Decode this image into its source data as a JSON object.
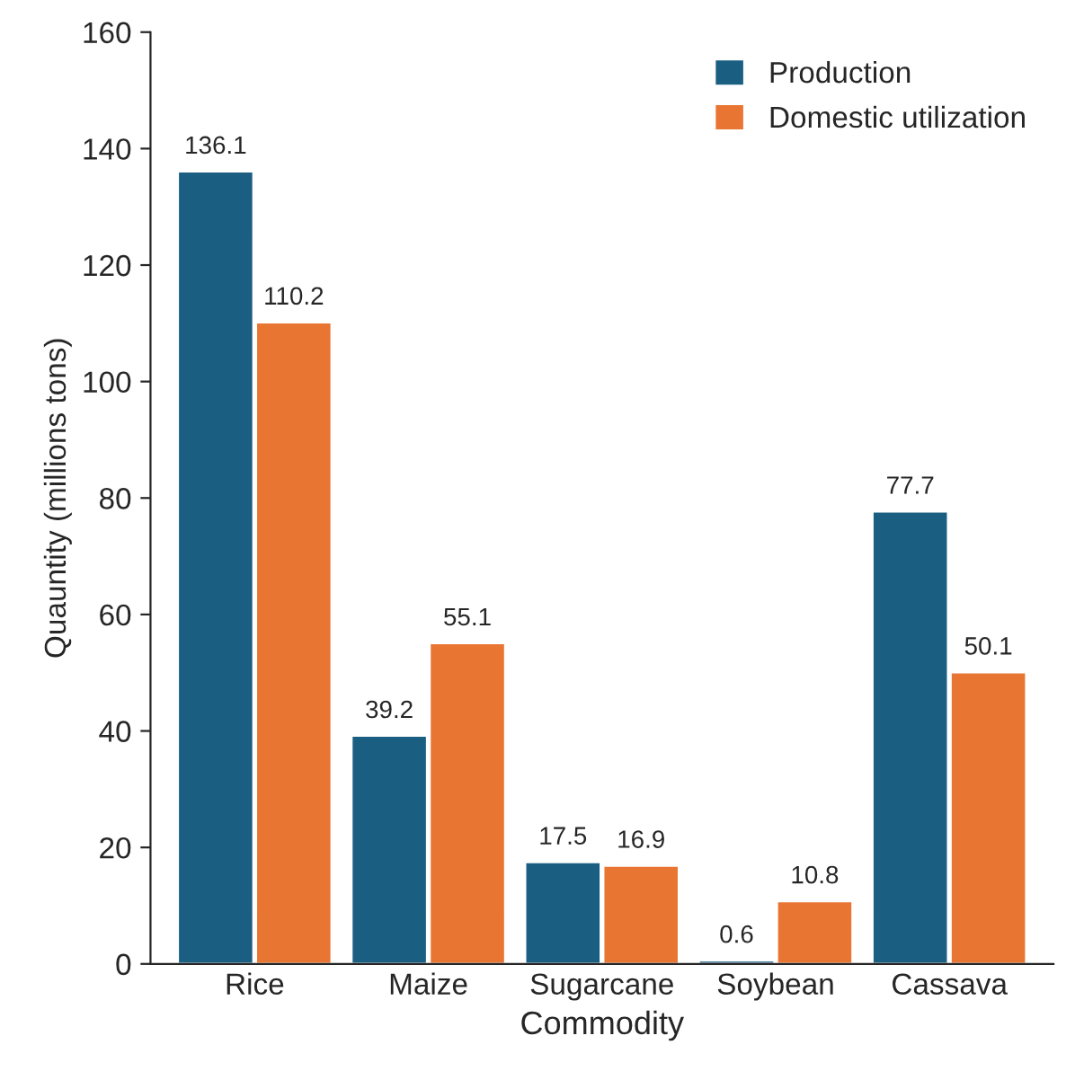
{
  "chart_data": {
    "type": "bar",
    "xlabel": "Commodity",
    "ylabel": "Quauntity (millions tons)",
    "categories": [
      "Rice",
      "Maize",
      "Sugarcane",
      "Soybean",
      "Cassava"
    ],
    "series": [
      {
        "name": "Production",
        "color": "#1a5e82",
        "values": [
          136.1,
          39.2,
          17.5,
          0.6,
          77.7
        ]
      },
      {
        "name": "Domestic utilization",
        "color": "#e97532",
        "values": [
          110.2,
          55.1,
          16.9,
          10.8,
          50.1
        ]
      }
    ],
    "ylim": [
      0,
      160
    ],
    "yticks": [
      0,
      20,
      40,
      60,
      80,
      100,
      120,
      140,
      160
    ],
    "grid": false,
    "legend": "top right",
    "data_labels": true
  }
}
